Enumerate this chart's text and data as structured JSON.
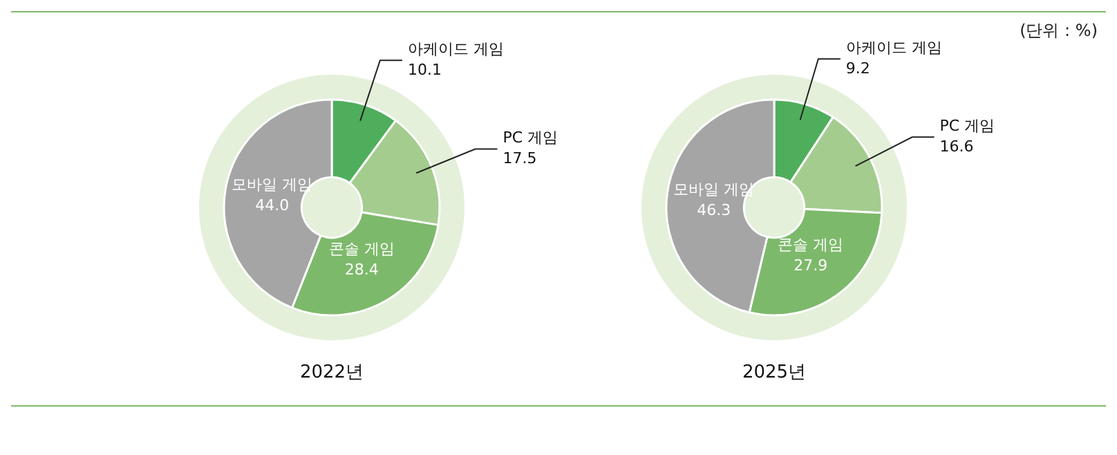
{
  "chart_data": [
    {
      "type": "donut",
      "title": "2022년",
      "categories": [
        "아케이드 게임",
        "PC 게임",
        "콘솔 게임",
        "모바일 게임"
      ],
      "values": [
        10.1,
        17.5,
        28.4,
        44.0
      ],
      "value_labels": [
        "10.1",
        "17.5",
        "28.4",
        "44.0"
      ],
      "colors": [
        "#4fae5c",
        "#a4cc8f",
        "#7db96b",
        "#a5a5a5"
      ]
    },
    {
      "type": "donut",
      "title": "2025년",
      "categories": [
        "아케이드 게임",
        "PC 게임",
        "콘솔 게임",
        "모바일 게임"
      ],
      "values": [
        9.2,
        16.6,
        27.9,
        46.3
      ],
      "value_labels": [
        "9.2",
        "16.6",
        "27.9",
        "46.3"
      ],
      "colors": [
        "#4fae5c",
        "#a4cc8f",
        "#7db96b",
        "#a5a5a5"
      ],
      "annotations": [
        "(단위 : %)"
      ]
    }
  ]
}
